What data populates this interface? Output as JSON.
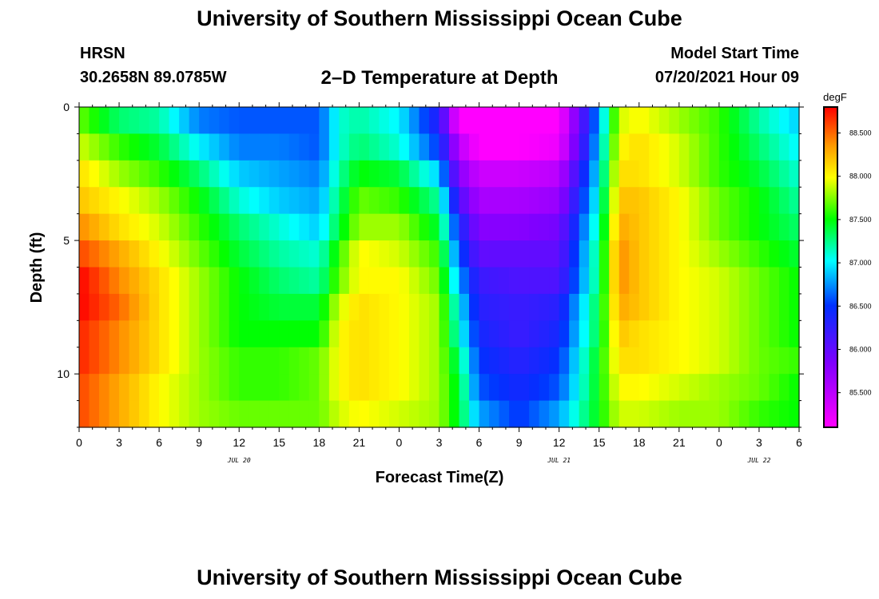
{
  "header": {
    "title": "University of Southern Mississippi Ocean Cube",
    "station": "HRSN",
    "coordinates": "30.2658N  89.0785W",
    "plot_title": "2–D Temperature at Depth",
    "model_start_label": "Model Start Time",
    "model_start_value": "07/20/2021 Hour 09"
  },
  "footer": {
    "title": "University of Southern Mississippi Ocean Cube"
  },
  "chart_data": {
    "type": "heatmap",
    "title": "2–D Temperature at Depth",
    "xlabel": "Forecast Time(Z)",
    "ylabel": "Depth (ft)",
    "colorbar_label": "degF",
    "x_tick_labels": [
      "0",
      "3",
      "6",
      "9",
      "12",
      "15",
      "18",
      "21",
      "0",
      "3",
      "6",
      "9",
      "12",
      "15",
      "18",
      "21",
      "0",
      "3",
      "6"
    ],
    "date_labels": [
      {
        "label": "JUL 20",
        "hour": 12
      },
      {
        "label": "JUL 21",
        "hour": 36
      },
      {
        "label": "JUL 22",
        "hour": 51
      }
    ],
    "xlim": [
      0,
      54
    ],
    "ylim": [
      0,
      12
    ],
    "y_ticks": [
      0,
      5,
      10
    ],
    "colorbar_ticks": [
      "88.500",
      "88.000",
      "87.500",
      "87.000",
      "86.500",
      "86.000",
      "85.500"
    ],
    "color_range": [
      85.1,
      88.8
    ],
    "hours": [
      0,
      3,
      6,
      9,
      12,
      15,
      18,
      19.5,
      21,
      24,
      27,
      28.5,
      30,
      33,
      36,
      39,
      40.5,
      42,
      45,
      48,
      51,
      54
    ],
    "depth_bins": [
      0,
      1,
      2,
      3,
      4,
      5,
      6,
      7,
      8,
      9,
      10,
      11
    ],
    "temperature_degF": [
      [
        87.7,
        87.3,
        87.2,
        86.7,
        86.6,
        86.6,
        86.6,
        87.1,
        87.2,
        87.0,
        86.3,
        85.1,
        85.1,
        85.1,
        85.1,
        86.8,
        87.9,
        88.0,
        87.8,
        87.6,
        87.2,
        86.9
      ],
      [
        87.9,
        87.6,
        87.4,
        87.0,
        86.7,
        86.7,
        86.6,
        87.1,
        87.3,
        87.1,
        86.5,
        85.5,
        85.1,
        85.1,
        85.2,
        86.9,
        88.0,
        88.1,
        87.9,
        87.6,
        87.3,
        87.0
      ],
      [
        88.1,
        87.8,
        87.6,
        87.3,
        86.9,
        86.8,
        86.7,
        87.2,
        87.5,
        87.4,
        86.9,
        85.8,
        85.4,
        85.4,
        85.5,
        87.0,
        88.1,
        88.1,
        87.9,
        87.6,
        87.4,
        87.1
      ],
      [
        88.2,
        88.0,
        87.8,
        87.5,
        87.1,
        86.9,
        86.8,
        87.3,
        87.7,
        87.6,
        87.2,
        86.1,
        85.6,
        85.6,
        85.7,
        87.1,
        88.2,
        88.2,
        88.0,
        87.7,
        87.5,
        87.2
      ],
      [
        88.4,
        88.1,
        87.9,
        87.6,
        87.3,
        87.1,
        86.9,
        87.4,
        87.8,
        87.8,
        87.4,
        86.4,
        85.8,
        85.8,
        85.9,
        87.2,
        88.3,
        88.2,
        88.0,
        87.7,
        87.5,
        87.3
      ],
      [
        88.6,
        88.3,
        88.0,
        87.7,
        87.4,
        87.2,
        87.1,
        87.6,
        88.0,
        87.9,
        87.6,
        86.6,
        86.0,
        86.0,
        86.0,
        87.3,
        88.4,
        88.2,
        88.0,
        87.8,
        87.6,
        87.4
      ],
      [
        88.8,
        88.4,
        88.1,
        87.8,
        87.5,
        87.3,
        87.2,
        87.7,
        88.0,
        88.0,
        87.7,
        86.8,
        86.2,
        86.1,
        86.1,
        87.3,
        88.4,
        88.2,
        88.0,
        87.9,
        87.7,
        87.5
      ],
      [
        88.8,
        88.5,
        88.1,
        87.8,
        87.5,
        87.4,
        87.4,
        87.9,
        88.1,
        88.0,
        87.8,
        87.0,
        86.3,
        86.2,
        86.3,
        87.4,
        88.3,
        88.2,
        88.0,
        87.9,
        87.7,
        87.5
      ],
      [
        88.7,
        88.4,
        88.1,
        87.8,
        87.5,
        87.5,
        87.5,
        88.0,
        88.1,
        88.0,
        87.8,
        87.1,
        86.4,
        86.2,
        86.4,
        87.4,
        88.2,
        88.1,
        88.0,
        87.9,
        87.7,
        87.5
      ],
      [
        88.7,
        88.4,
        88.1,
        87.8,
        87.6,
        87.6,
        87.7,
        88.0,
        88.1,
        88.0,
        87.8,
        87.3,
        86.5,
        86.3,
        86.5,
        87.5,
        88.1,
        88.1,
        88.0,
        87.9,
        87.7,
        87.6
      ],
      [
        88.6,
        88.3,
        88.0,
        87.8,
        87.6,
        87.6,
        87.7,
        88.0,
        88.1,
        88.0,
        87.8,
        87.4,
        86.6,
        86.4,
        86.6,
        87.5,
        88.0,
        88.0,
        87.9,
        87.8,
        87.7,
        87.5
      ],
      [
        88.6,
        88.3,
        88.0,
        87.8,
        87.7,
        87.7,
        87.7,
        87.9,
        88.0,
        87.9,
        87.8,
        87.4,
        86.8,
        86.5,
        86.8,
        87.5,
        87.9,
        87.9,
        87.8,
        87.8,
        87.6,
        87.5
      ]
    ]
  }
}
